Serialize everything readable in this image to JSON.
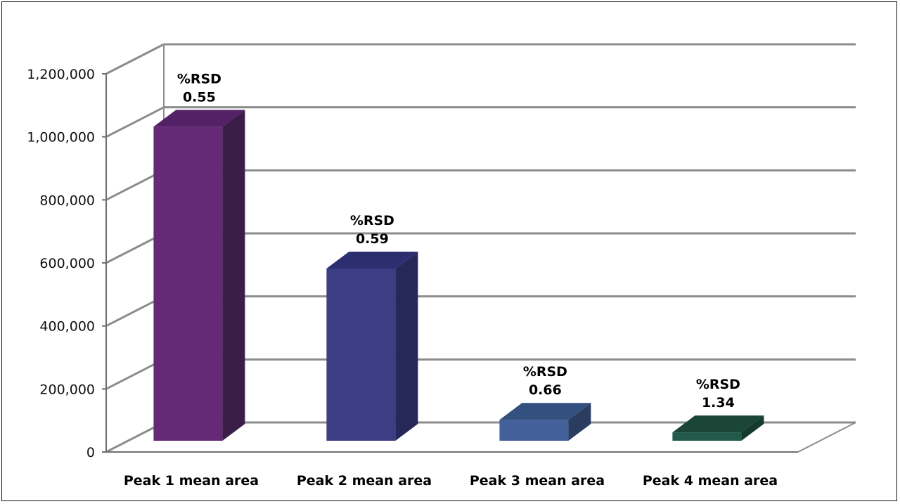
{
  "chart_data": {
    "type": "bar",
    "style": "3d-column",
    "title": "",
    "xlabel": "",
    "ylabel": "",
    "ylim": [
      0,
      1200000
    ],
    "yticks": [
      0,
      200000,
      400000,
      600000,
      800000,
      1000000,
      1200000
    ],
    "ytick_labels": [
      "0",
      "200,000",
      "400,000",
      "600,000",
      "800,000",
      "1,000,000",
      "1,200,000"
    ],
    "grid": true,
    "legend": "none",
    "categories": [
      "Peak 1 mean area",
      "Peak 2 mean area",
      "Peak 3 mean area",
      "Peak 4 mean area"
    ],
    "values": [
      1050000,
      600000,
      120000,
      80000
    ],
    "data_labels": [
      [
        "%RSD",
        "0.55"
      ],
      [
        "%RSD",
        "0.59"
      ],
      [
        "%RSD",
        "0.66"
      ],
      [
        "%RSD",
        "1.34"
      ]
    ],
    "colors": {
      "front": [
        "#652a76",
        "#3b3e82",
        "#44609a",
        "#22594a"
      ],
      "top": [
        "#532165",
        "#2c2e6f",
        "#34507e",
        "#1a4537"
      ],
      "side": [
        "#3b1e48",
        "#26285a",
        "#2a3c60",
        "#163a2d"
      ],
      "grid": "#8c8c8c",
      "axis": "#6e6e6e"
    }
  }
}
